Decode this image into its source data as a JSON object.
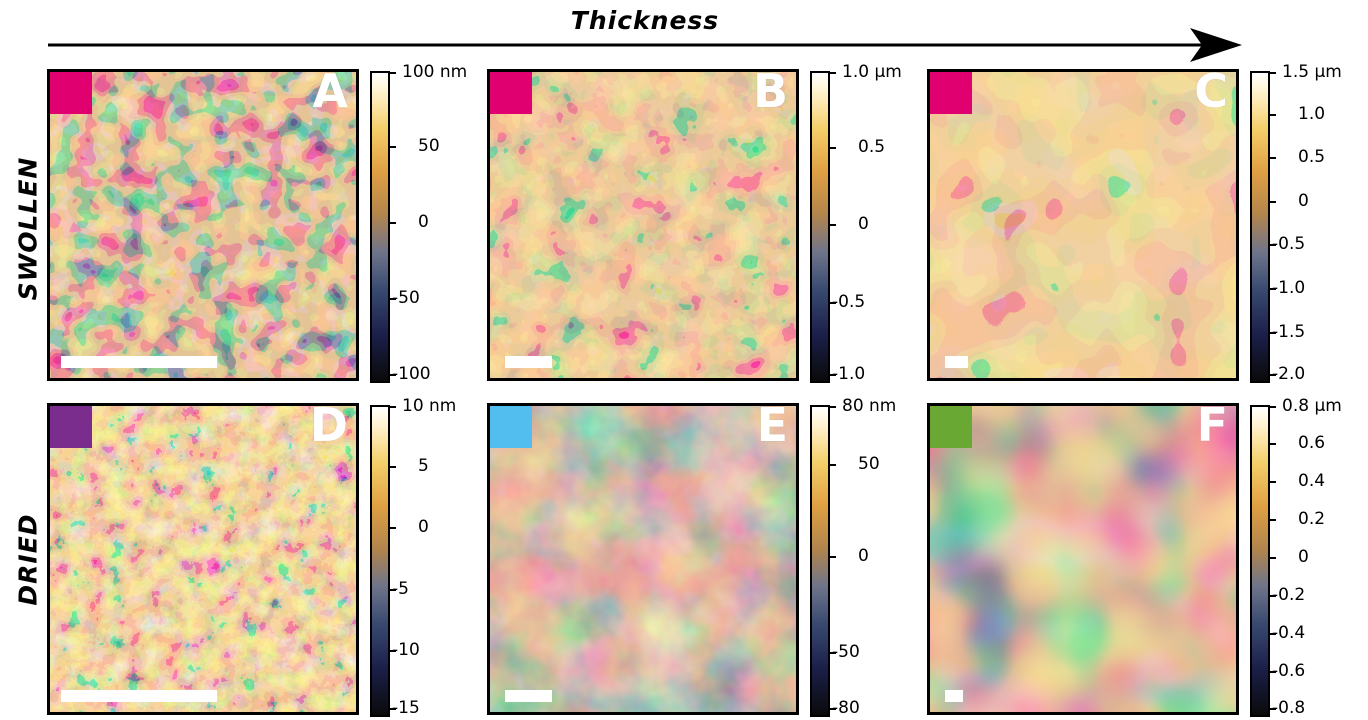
{
  "header": {
    "title": "Thickness"
  },
  "rows": {
    "top": "SWOLLEN",
    "bottom": "DRIED"
  },
  "colors": {
    "magenta": "#e0006f",
    "purple": "#7b2d8e",
    "cyan": "#52bef0",
    "green": "#6aa834"
  },
  "panels": [
    {
      "letter": "A",
      "swatch": "#e0006f",
      "ticks": [
        "100 nm",
        "50",
        "0",
        "-50",
        "-100"
      ]
    },
    {
      "letter": "B",
      "swatch": "#e0006f",
      "ticks": [
        "1.0 µm",
        "0.5",
        "0",
        "-0.5",
        "-1.0"
      ]
    },
    {
      "letter": "C",
      "swatch": "#e0006f",
      "ticks": [
        "1.5 µm",
        "1.0",
        "0.5",
        "0",
        "-0.5",
        "-1.0",
        "-1.5",
        "-2.0"
      ]
    },
    {
      "letter": "D",
      "swatch": "#7b2d8e",
      "ticks": [
        "10 nm",
        "5",
        "0",
        "-5",
        "-10",
        "-15"
      ]
    },
    {
      "letter": "E",
      "swatch": "#52bef0",
      "ticks": [
        "80 nm",
        "50",
        "0",
        "-50",
        "-80"
      ]
    },
    {
      "letter": "F",
      "swatch": "#6aa834",
      "ticks": [
        "0.8 µm",
        "0.6",
        "0.4",
        "0.2",
        "0",
        "-0.2",
        "-0.4",
        "-0.6",
        "-0.8"
      ]
    }
  ]
}
